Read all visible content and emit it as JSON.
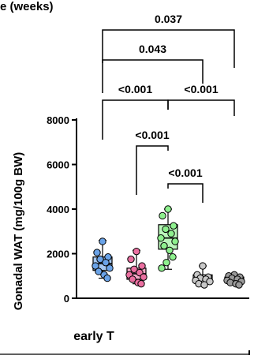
{
  "header_partial": "e (weeks)",
  "chart_data": {
    "type": "box",
    "ylabel": "Gonadal WAT (mg/100g BW)",
    "xlabel": "early T",
    "ylim": [
      0,
      8000
    ],
    "yticks": [
      0,
      2000,
      4000,
      6000,
      8000
    ],
    "ytick_labels": [
      "0",
      "2000",
      "4000",
      "6000",
      "8000"
    ],
    "groups": [
      {
        "color": "#6aa3e8",
        "stats": {
          "min": 900,
          "q1": 1250,
          "median": 1550,
          "q3": 1850,
          "max": 2600
        },
        "points": [
          2550,
          2050,
          1850,
          1750,
          1600,
          1450,
          1350,
          1200,
          1050,
          900
        ]
      },
      {
        "color": "#ea6fa0",
        "stats": {
          "min": 650,
          "q1": 850,
          "median": 1100,
          "q3": 1350,
          "max": 2150
        },
        "points": [
          2100,
          1750,
          1450,
          1300,
          1150,
          1050,
          950,
          850,
          700,
          650
        ]
      },
      {
        "color": "#8ef08e",
        "stats": {
          "min": 1300,
          "q1": 2200,
          "median": 2700,
          "q3": 3300,
          "max": 4000
        },
        "points": [
          4000,
          3700,
          3250,
          3100,
          2900,
          2700,
          2550,
          2350,
          2150,
          1850,
          1600,
          1350
        ]
      },
      {
        "color": "#c8c8c8",
        "stats": {
          "min": 550,
          "q1": 700,
          "median": 900,
          "q3": 1050,
          "max": 1450
        },
        "points": [
          1450,
          1050,
          950,
          900,
          850,
          800,
          750,
          650,
          600
        ]
      },
      {
        "color": "#9a9a9a",
        "stats": {
          "min": 600,
          "q1": 750,
          "median": 850,
          "q3": 950,
          "max": 1050
        },
        "points": [
          1050,
          1000,
          950,
          900,
          850,
          800,
          750,
          700,
          650,
          600
        ]
      }
    ],
    "comparisons": [
      {
        "from": 1,
        "to": 5,
        "label": "0.037"
      },
      {
        "from": 1,
        "to": 4,
        "label": "0.043"
      },
      {
        "from": 1,
        "to": 3,
        "label": "<0.001"
      },
      {
        "from": 3,
        "to": 5,
        "label": "<0.001"
      },
      {
        "from": 2,
        "to": 3,
        "label": "<0.001"
      },
      {
        "from": 3,
        "to": 4,
        "label": "<0.001"
      }
    ]
  }
}
